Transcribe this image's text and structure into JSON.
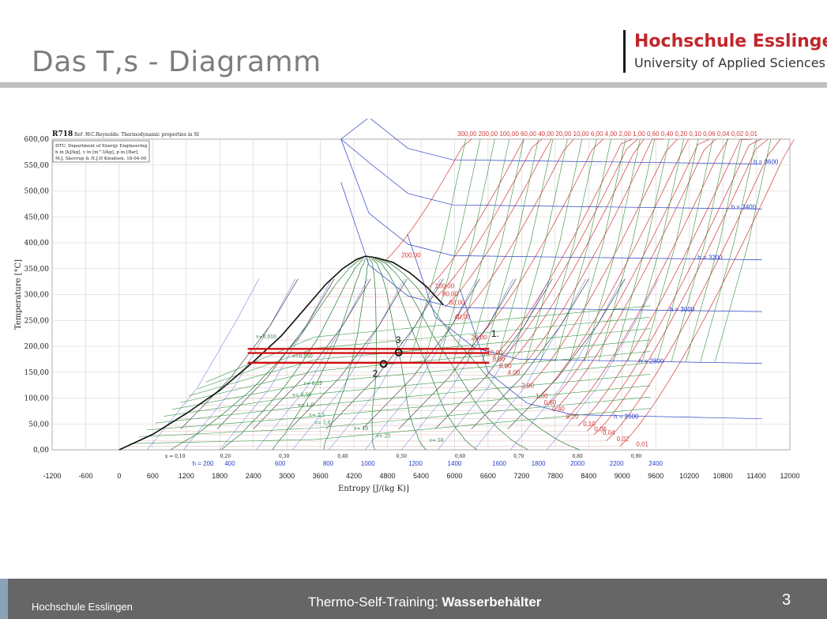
{
  "slide": {
    "title": "Das T,s - Diagramm"
  },
  "logo": {
    "name": "Hochschule Esslingen",
    "subtitle": "University of Applied Sciences"
  },
  "footer": {
    "left": "Hochschule Esslingen",
    "center_prefix": "Thermo-Self-Training: ",
    "center_bold": "Wasserbehälter",
    "page": "3"
  },
  "chart_data": {
    "type": "line",
    "title": "R718",
    "ref": "Ref :W.C.Reynolds: Thermodynamic properties in SI",
    "info_box": [
      "DTU, Department of Energy Engineering",
      "h in [kJ/kg], v in [m^3/kg], p in [Bar]",
      "M.J. Skovrup & H.J.H Knudsen. 18-04-09"
    ],
    "xlabel": "Entropy [J/(kg K)]",
    "ylabel": "Temperature [°C]",
    "xlim": [
      -1200,
      12000
    ],
    "ylim": [
      0,
      600
    ],
    "grid": true,
    "x_ticks": [
      "-1200",
      "-600",
      "0",
      "600",
      "1200",
      "1800",
      "2400",
      "3000",
      "3600",
      "4200",
      "4800",
      "5400",
      "6000",
      "6600",
      "7200",
      "7800",
      "8400",
      "9000",
      "9600",
      "10200",
      "10800",
      "11400",
      "12000"
    ],
    "y_ticks": [
      "0,00",
      "50,00",
      "100,00",
      "150,00",
      "200,00",
      "250,00",
      "300,00",
      "350,00",
      "400,00",
      "450,00",
      "500,00",
      "550,00",
      "600,00"
    ],
    "quality_ticks": [
      {
        "s": 1000,
        "label": "x = 0,10"
      },
      {
        "s": 1900,
        "label": "0,20"
      },
      {
        "s": 2950,
        "label": "0,30"
      },
      {
        "s": 4000,
        "label": "0,40"
      },
      {
        "s": 5050,
        "label": "0,50"
      },
      {
        "s": 6100,
        "label": "0,60"
      },
      {
        "s": 7150,
        "label": "0,70"
      },
      {
        "s": 8200,
        "label": "0,80"
      },
      {
        "s": 9250,
        "label": "0,90"
      }
    ],
    "enthalpy_ticks": [
      {
        "s": 1500,
        "label": "h = 200"
      },
      {
        "s": 1980,
        "label": "400"
      },
      {
        "s": 2880,
        "label": "600"
      },
      {
        "s": 3740,
        "label": "800"
      },
      {
        "s": 4450,
        "label": "1000"
      },
      {
        "s": 5300,
        "label": "1200"
      },
      {
        "s": 6000,
        "label": "1400"
      },
      {
        "s": 6800,
        "label": "1600"
      },
      {
        "s": 7500,
        "label": "1800"
      },
      {
        "s": 8200,
        "label": "2000"
      },
      {
        "s": 8900,
        "label": "2200"
      },
      {
        "s": 9600,
        "label": "2400"
      }
    ],
    "pressure_labels_top": "300,00 200,00 100,00 60,00 40,00 20,00 10,00 6,00 4,00 2,00 1,00 0,60 0,40 0,20 0,10 0,06 0,04 0,02 0,01",
    "pressure_labels_curve": [
      {
        "s": 5050,
        "T": 372,
        "label": "200,00"
      },
      {
        "s": 5650,
        "T": 312,
        "label": "100,00"
      },
      {
        "s": 5780,
        "T": 297,
        "label": "80,00"
      },
      {
        "s": 5900,
        "T": 280,
        "label": "60,00"
      },
      {
        "s": 6000,
        "T": 253,
        "label": "40,00"
      },
      {
        "s": 6300,
        "T": 213,
        "label": "20,00"
      },
      {
        "s": 6580,
        "T": 183,
        "label": "10,00"
      },
      {
        "s": 6680,
        "T": 172,
        "label": "8,00"
      },
      {
        "s": 6800,
        "T": 158,
        "label": "6,00"
      },
      {
        "s": 6950,
        "T": 145,
        "label": "4,00"
      },
      {
        "s": 7200,
        "T": 120,
        "label": "2,00"
      },
      {
        "s": 7450,
        "T": 100,
        "label": "1,00"
      },
      {
        "s": 7600,
        "T": 87,
        "label": "0,60"
      },
      {
        "s": 7750,
        "T": 75,
        "label": "0,40"
      },
      {
        "s": 8000,
        "T": 60,
        "label": "0,20"
      },
      {
        "s": 8300,
        "T": 46,
        "label": "0,10"
      },
      {
        "s": 8500,
        "T": 36,
        "label": "0,06"
      },
      {
        "s": 8650,
        "T": 29,
        "label": "0,04"
      },
      {
        "s": 8900,
        "T": 17,
        "label": "0,02"
      },
      {
        "s": 9250,
        "T": 7,
        "label": "0,01"
      }
    ],
    "enthalpy_labels_vapor": [
      {
        "s": 11350,
        "T": 552,
        "label": "h = 3600"
      },
      {
        "s": 10950,
        "T": 465,
        "label": "h = 3400"
      },
      {
        "s": 10350,
        "T": 367,
        "label": "h = 3200"
      },
      {
        "s": 9850,
        "T": 267,
        "label": "h = 3000"
      },
      {
        "s": 9300,
        "T": 167,
        "label": "h = 2800"
      },
      {
        "s": 8850,
        "T": 60,
        "label": "h = 2600"
      }
    ],
    "volume_labels": [
      {
        "s": 2450,
        "T": 215,
        "label": "v=0,010"
      },
      {
        "s": 3100,
        "T": 178,
        "label": "v=0,050"
      },
      {
        "s": 3300,
        "T": 125,
        "label": "v= 0,25"
      },
      {
        "s": 3100,
        "T": 103,
        "label": "v= 0,50"
      },
      {
        "s": 3200,
        "T": 83,
        "label": "v= 1,0"
      },
      {
        "s": 3400,
        "T": 64,
        "label": "v= 2,5"
      },
      {
        "s": 3500,
        "T": 50,
        "label": "v= 5,0"
      },
      {
        "s": 4200,
        "T": 38,
        "label": "v= 10"
      },
      {
        "s": 4600,
        "T": 24,
        "label": "v= 25"
      },
      {
        "s": 5550,
        "T": 15,
        "label": "v= 50"
      }
    ],
    "saturation_dome": [
      [
        0,
        0
      ],
      [
        600,
        30
      ],
      [
        1200,
        70
      ],
      [
        1800,
        115
      ],
      [
        2400,
        170
      ],
      [
        2900,
        220
      ],
      [
        3300,
        270
      ],
      [
        3700,
        320
      ],
      [
        4000,
        350
      ],
      [
        4250,
        368
      ],
      [
        4410,
        373.9
      ],
      [
        4600,
        371
      ],
      [
        4900,
        362
      ],
      [
        5200,
        342
      ],
      [
        5500,
        315
      ],
      [
        5800,
        280
      ]
    ],
    "process": {
      "lines": [
        {
          "T": 195,
          "s_from": 2300,
          "s_to": 6620
        },
        {
          "T": 187,
          "s_from": 2300,
          "s_to": 6620
        },
        {
          "T": 168,
          "s_from": 2300,
          "s_to": 6620
        }
      ],
      "points": [
        {
          "label": "1.",
          "s": 6600,
          "T": 200
        },
        {
          "label": "2.",
          "s": 4730,
          "T": 166
        },
        {
          "label": "3.",
          "s": 5000,
          "T": 188
        }
      ]
    }
  }
}
